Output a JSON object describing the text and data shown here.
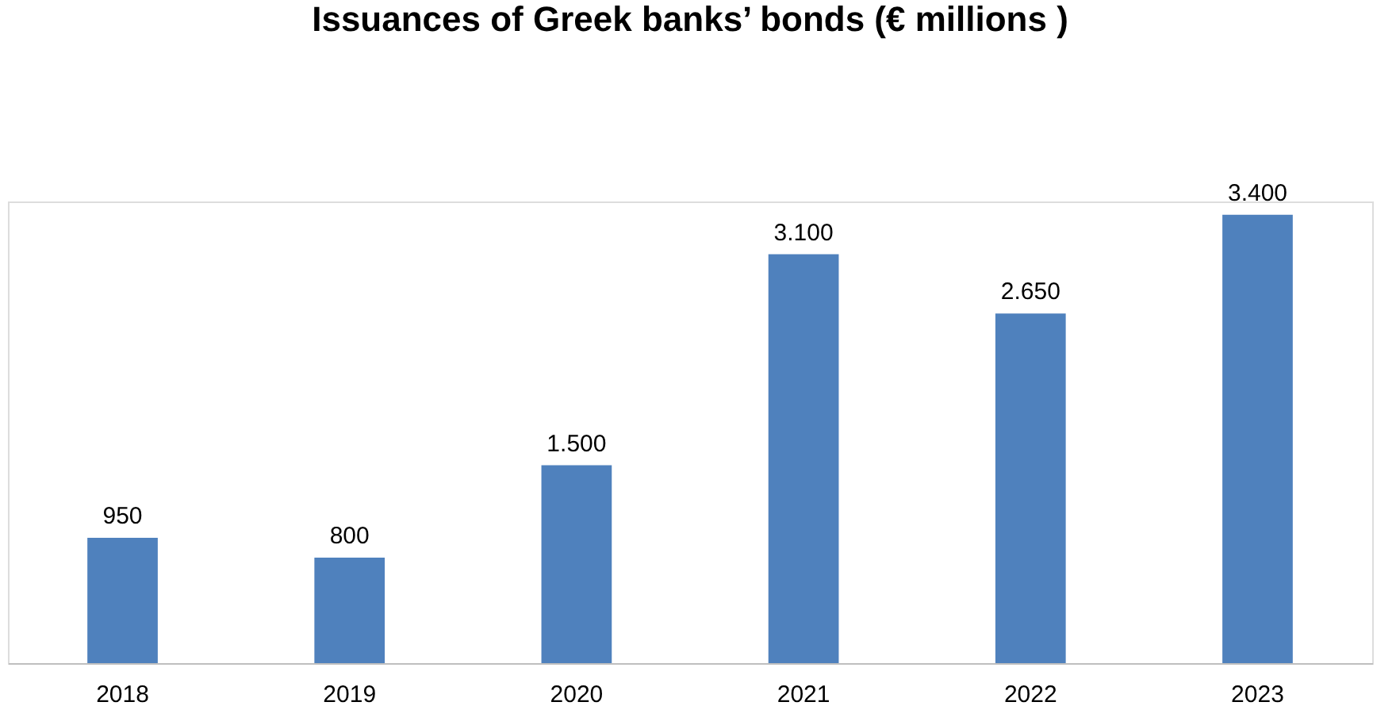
{
  "chart_data": {
    "type": "bar",
    "title": "Issuances of Greek banks’ bonds (€ millions )",
    "categories": [
      "2018",
      "2019",
      "2020",
      "2021",
      "2022",
      "2023"
    ],
    "values": [
      950,
      800,
      1500,
      3100,
      2650,
      3400
    ],
    "value_labels": [
      "950",
      "800",
      "1.500",
      "3.100",
      "2.650",
      "3.400"
    ],
    "color": "#4f81bd",
    "tick_labels": "x"
  }
}
